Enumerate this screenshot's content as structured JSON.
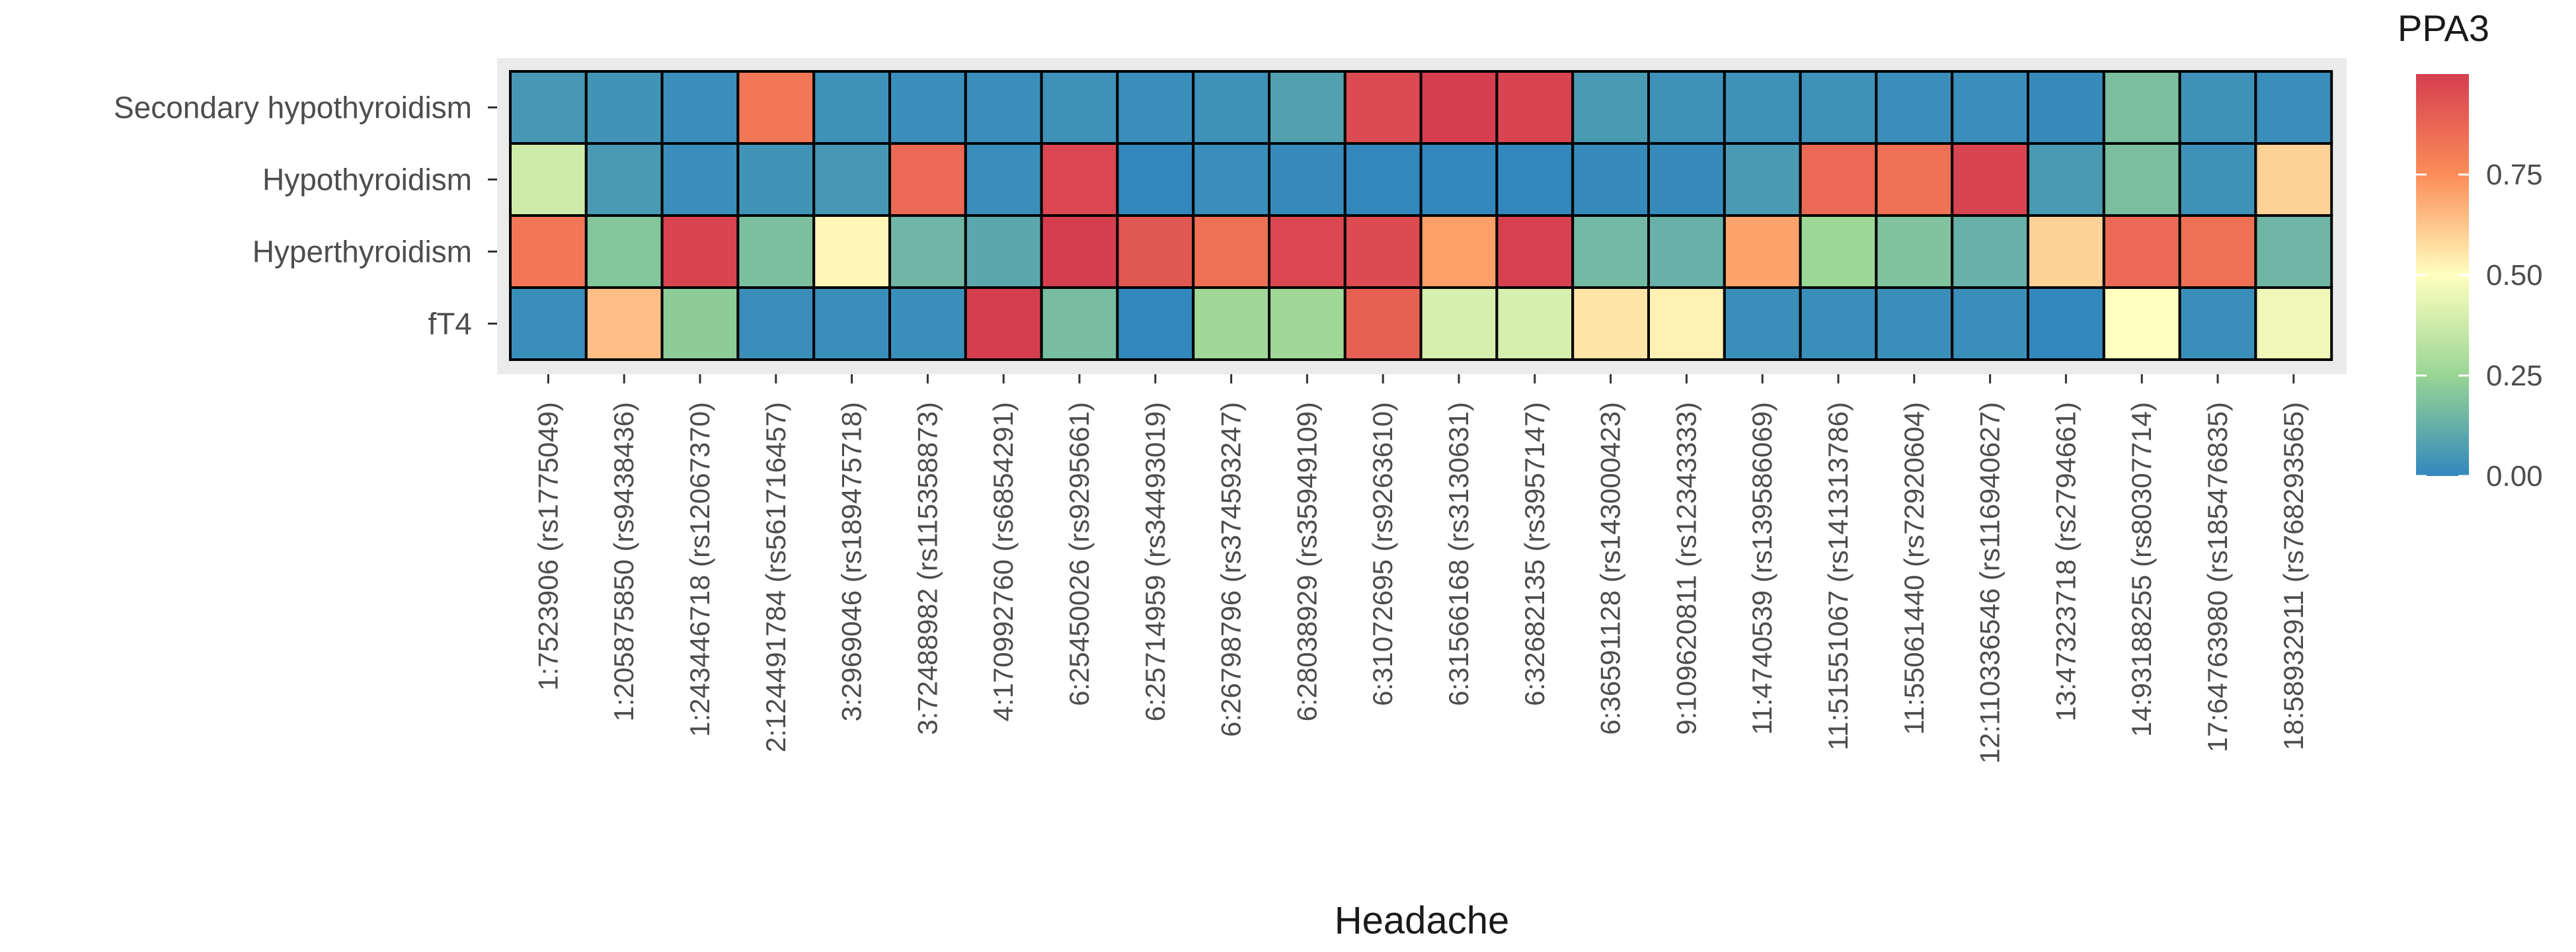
{
  "chart_data": {
    "type": "heatmap",
    "title": "",
    "xlabel": "Headache",
    "ylabel": "",
    "rows": [
      "Secondary hypothyroidism",
      "Hypothyroidism",
      "Hyperthyroidism",
      "fT4"
    ],
    "columns": [
      "1:7523906 (rs1775049)",
      "1:205875850 (rs9438436)",
      "1:243446718 (rs12067370)",
      "2:124491784 (rs561716457)",
      "3:2969046 (rs189475718)",
      "3:72488982 (rs115358873)",
      "4:170992760 (rs6854291)",
      "6:25450026 (rs9295661)",
      "6:25714959 (rs34493019)",
      "6:26798796 (rs374593247)",
      "6:28038929 (rs35949109)",
      "6:31072695 (rs9263610)",
      "6:31566168 (rs3130631)",
      "6:32682135 (rs3957147)",
      "6:36591128 (rs143000423)",
      "9:109620811 (rs12343333)",
      "11:4740539 (rs139586069)",
      "11:51551067 (rs141313786)",
      "11:55061440 (rs72920604)",
      "12:110336546 (rs116940627)",
      "13:47323718 (rs2794661)",
      "14:93188255 (rs80307714)",
      "17:64763980 (rs185476835)",
      "18:58932911 (rs768293565)"
    ],
    "values": [
      [
        0.05,
        0.04,
        0.02,
        0.82,
        0.03,
        0.02,
        0.02,
        0.03,
        0.02,
        0.03,
        0.08,
        0.96,
        1.0,
        0.98,
        0.06,
        0.03,
        0.03,
        0.03,
        0.02,
        0.02,
        0.01,
        0.18,
        0.03,
        0.02
      ],
      [
        0.38,
        0.06,
        0.02,
        0.04,
        0.05,
        0.86,
        0.02,
        0.97,
        0.0,
        0.02,
        0.01,
        0.0,
        0.0,
        0.0,
        0.01,
        0.01,
        0.06,
        0.86,
        0.84,
        0.98,
        0.06,
        0.18,
        0.03,
        0.6
      ],
      [
        0.82,
        0.2,
        0.98,
        0.18,
        0.52,
        0.15,
        0.1,
        1.0,
        0.92,
        0.84,
        0.97,
        0.96,
        0.71,
        0.99,
        0.16,
        0.13,
        0.7,
        0.26,
        0.19,
        0.13,
        0.6,
        0.86,
        0.84,
        0.15
      ],
      [
        0.02,
        0.64,
        0.22,
        0.02,
        0.02,
        0.02,
        1.0,
        0.17,
        0.0,
        0.27,
        0.27,
        0.89,
        0.4,
        0.4,
        0.56,
        0.53,
        0.02,
        0.02,
        0.02,
        0.02,
        0.0,
        0.5,
        0.02,
        0.46
      ]
    ],
    "color_scale": {
      "name": "PPA3",
      "min": 0.0,
      "max": 1.0,
      "colors": [
        "#3288bd",
        "#99d594",
        "#ffffbf",
        "#fc8d59",
        "#d53e4f"
      ]
    },
    "legend": {
      "title": "PPA3",
      "ticks": [
        0.0,
        0.25,
        0.5,
        0.75
      ],
      "tick_labels": [
        "0.00",
        "0.25",
        "0.50",
        "0.75"
      ],
      "placement": "right"
    },
    "panel_background": "#ebebeb",
    "grid": false
  }
}
